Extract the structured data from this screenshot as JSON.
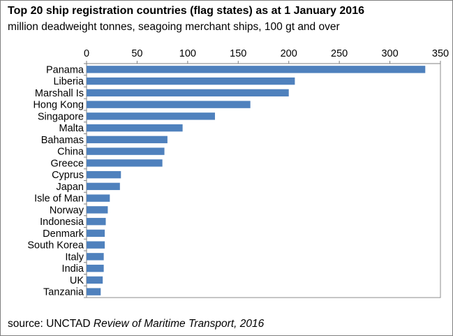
{
  "chart_data": {
    "type": "bar",
    "orientation": "horizontal",
    "title": "Top 20 ship registration countries (flag states) as at 1 January 2016",
    "subtitle": "million deadweight tonnes, seagoing merchant ships, 100 gt and over",
    "xlabel": "",
    "ylabel": "",
    "xlim": [
      0,
      350
    ],
    "x_ticks": [
      0,
      50,
      100,
      150,
      200,
      250,
      300,
      350
    ],
    "x_axis_position": "top",
    "grid": false,
    "legend": "none",
    "categories": [
      "Panama",
      "Liberia",
      "Marshall Is",
      "Hong Kong",
      "Singapore",
      "Malta",
      "Bahamas",
      "China",
      "Greece",
      "Cyprus",
      "Japan",
      "Isle of Man",
      "Norway",
      "Indonesia",
      "Denmark",
      "South Korea",
      "Italy",
      "India",
      "UK",
      "Tanzania"
    ],
    "values": [
      335,
      206,
      200,
      162,
      127,
      95,
      80,
      77,
      75,
      34,
      33,
      23,
      21,
      19,
      18,
      18,
      17,
      17,
      16,
      14
    ],
    "bar_color": "#4f81bd"
  },
  "source": {
    "prefix": "source: UNCTAD ",
    "publication": "Review of Maritime Transport, 2016"
  }
}
